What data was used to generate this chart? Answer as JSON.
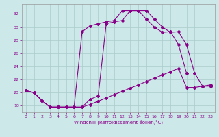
{
  "xlabel": "Windchill (Refroidissement éolien,°C)",
  "bg_color": "#cce8e8",
  "line_color": "#880088",
  "grid_color": "#aacccc",
  "xlim": [
    -0.5,
    23.5
  ],
  "ylim": [
    17.0,
    33.5
  ],
  "yticks": [
    18,
    20,
    22,
    24,
    26,
    28,
    30,
    32
  ],
  "xticks": [
    0,
    1,
    2,
    3,
    4,
    5,
    6,
    7,
    8,
    9,
    10,
    11,
    12,
    13,
    14,
    15,
    16,
    17,
    18,
    19,
    20,
    21,
    22,
    23
  ],
  "line_a_x": [
    0,
    1,
    2,
    3,
    4,
    5,
    6,
    7,
    8,
    9,
    10,
    11,
    12,
    13,
    14,
    15,
    16,
    17,
    18,
    19,
    20,
    21,
    22,
    23
  ],
  "line_a_y": [
    20.3,
    20.0,
    18.8,
    17.8,
    17.8,
    17.8,
    17.8,
    17.8,
    19.0,
    19.5,
    30.5,
    30.8,
    31.0,
    32.5,
    32.5,
    32.5,
    31.2,
    30.0,
    29.2,
    29.3,
    27.3,
    23.0,
    21.0,
    21.0
  ],
  "line_b_x": [
    0,
    1,
    2,
    3,
    4,
    5,
    6,
    7,
    8,
    9,
    10,
    11,
    12,
    13,
    14,
    15,
    16,
    17,
    18,
    19,
    20,
    21,
    22,
    23
  ],
  "line_b_y": [
    20.3,
    20.0,
    18.8,
    17.8,
    17.8,
    17.8,
    17.8,
    17.8,
    18.2,
    18.7,
    19.2,
    19.7,
    20.2,
    20.7,
    21.2,
    21.7,
    22.2,
    22.7,
    23.2,
    23.7,
    20.8,
    20.8,
    21.0,
    21.2
  ],
  "line_c_x": [
    0,
    1,
    2,
    3,
    4,
    5,
    6,
    7,
    8,
    9,
    10,
    11,
    12,
    13,
    14,
    15,
    16,
    17,
    18,
    19,
    20
  ],
  "line_c_y": [
    20.3,
    20.0,
    18.8,
    17.8,
    17.8,
    17.8,
    17.8,
    29.3,
    30.2,
    30.5,
    30.8,
    31.0,
    32.5,
    32.5,
    32.5,
    31.2,
    30.0,
    29.2,
    29.3,
    27.3,
    23.0
  ]
}
